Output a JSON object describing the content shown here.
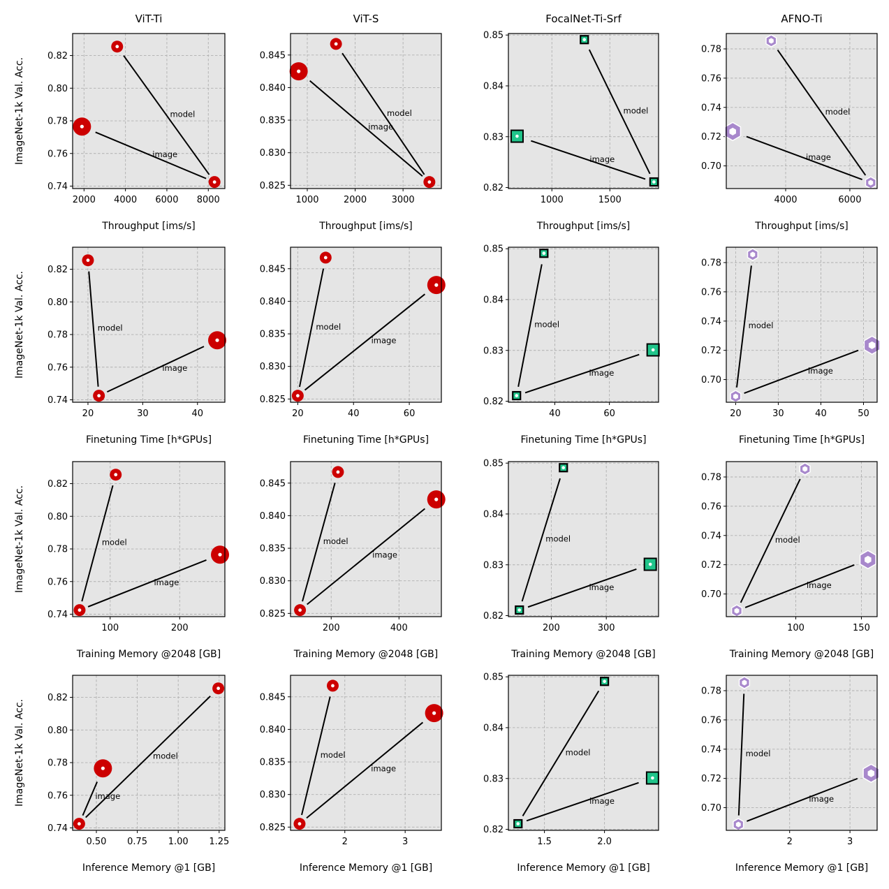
{
  "figure": {
    "y_axis_label": "ImageNet-1k Val. Acc.",
    "colors": {
      "vit": "#cc0000",
      "focalnet_fill": "#20c48a",
      "focalnet_edge": "#000000",
      "afno": "#a888cc",
      "dot": "#ffffff",
      "line": "#000000"
    }
  },
  "chart_data": [
    {
      "type": "scatter",
      "title": "ViT-Ti",
      "xlabel": "Throughput [ims/s]",
      "ylabel": "ImageNet-1k Val. Acc.",
      "xlim": [
        1450,
        8800
      ],
      "ylim": [
        0.7385,
        0.8335
      ],
      "xticks": [
        2000,
        4000,
        6000,
        8000
      ],
      "xtick_labels": [
        "2000",
        "4000",
        "6000",
        "8000"
      ],
      "yticks": [
        0.74,
        0.76,
        0.78,
        0.8,
        0.82
      ],
      "ytick_labels": [
        "0.74",
        "0.76",
        "0.78",
        "0.80",
        "0.82"
      ],
      "marker": "circle",
      "points": {
        "base": {
          "x": 8300,
          "y": 0.7425
        },
        "model": {
          "x": 3600,
          "y": 0.8255
        },
        "image": {
          "x": 1900,
          "y": 0.7765
        }
      },
      "annotations": [
        "model",
        "image"
      ],
      "grid": true
    },
    {
      "type": "scatter",
      "title": "ViT-S",
      "xlabel": "Throughput [ims/s]",
      "ylabel": "",
      "xlim": [
        650,
        3800
      ],
      "ylim": [
        0.8245,
        0.8483
      ],
      "xticks": [
        1000,
        2000,
        3000
      ],
      "xtick_labels": [
        "1000",
        "2000",
        "3000"
      ],
      "yticks": [
        0.825,
        0.83,
        0.835,
        0.84,
        0.845
      ],
      "ytick_labels": [
        "0.825",
        "0.830",
        "0.835",
        "0.840",
        "0.845"
      ],
      "marker": "circle",
      "points": {
        "base": {
          "x": 3550,
          "y": 0.8255
        },
        "model": {
          "x": 1600,
          "y": 0.8467
        },
        "image": {
          "x": 820,
          "y": 0.8425
        }
      },
      "annotations": [
        "model",
        "image"
      ],
      "grid": true
    },
    {
      "type": "scatter",
      "title": "FocalNet-Ti-Srf",
      "xlabel": "Throughput [ims/s]",
      "ylabel": "",
      "xlim": [
        625,
        1920
      ],
      "ylim": [
        0.8198,
        0.8503
      ],
      "xticks": [
        1000,
        1500
      ],
      "xtick_labels": [
        "1000",
        "1500"
      ],
      "yticks": [
        0.82,
        0.83,
        0.84,
        0.85
      ],
      "ytick_labels": [
        "0.82",
        "0.83",
        "0.84",
        "0.85"
      ],
      "marker": "square",
      "points": {
        "base": {
          "x": 1880,
          "y": 0.8211
        },
        "model": {
          "x": 1280,
          "y": 0.8491
        },
        "image": {
          "x": 700,
          "y": 0.8301
        }
      },
      "annotations": [
        "model",
        "image"
      ],
      "grid": true
    },
    {
      "type": "scatter",
      "title": "AFNO-Ti",
      "xlabel": "Throughput [ims/s]",
      "ylabel": "",
      "xlim": [
        2150,
        6850
      ],
      "ylim": [
        0.6845,
        0.7905
      ],
      "xticks": [
        4000,
        6000
      ],
      "xtick_labels": [
        "4000",
        "6000"
      ],
      "yticks": [
        0.7,
        0.72,
        0.74,
        0.76,
        0.78
      ],
      "ytick_labels": [
        "0.70",
        "0.72",
        "0.74",
        "0.76",
        "0.78"
      ],
      "marker": "hexagon",
      "points": {
        "base": {
          "x": 6650,
          "y": 0.6885
        },
        "model": {
          "x": 3550,
          "y": 0.7855
        },
        "image": {
          "x": 2350,
          "y": 0.7235
        }
      },
      "annotations": [
        "model",
        "image"
      ],
      "grid": true
    },
    {
      "type": "scatter",
      "title": "",
      "xlabel": "Finetuning Time [h*GPUs]",
      "ylabel": "ImageNet-1k Val. Acc.",
      "xlim": [
        17.2,
        45
      ],
      "ylim": [
        0.7385,
        0.8335
      ],
      "xticks": [
        20,
        30,
        40
      ],
      "xtick_labels": [
        "20",
        "30",
        "40"
      ],
      "yticks": [
        0.74,
        0.76,
        0.78,
        0.8,
        0.82
      ],
      "ytick_labels": [
        "0.74",
        "0.76",
        "0.78",
        "0.80",
        "0.82"
      ],
      "marker": "circle",
      "points": {
        "base": {
          "x": 22,
          "y": 0.7425
        },
        "model": {
          "x": 20,
          "y": 0.8255
        },
        "image": {
          "x": 43.6,
          "y": 0.7765
        }
      },
      "annotations": [
        "model",
        "image"
      ],
      "grid": true
    },
    {
      "type": "scatter",
      "title": "",
      "xlabel": "Finetuning Time [h*GPUs]",
      "ylabel": "",
      "xlim": [
        17.4,
        71.5
      ],
      "ylim": [
        0.8245,
        0.8483
      ],
      "xticks": [
        20,
        40,
        60
      ],
      "xtick_labels": [
        "20",
        "40",
        "60"
      ],
      "yticks": [
        0.825,
        0.83,
        0.835,
        0.84,
        0.845
      ],
      "ytick_labels": [
        "0.825",
        "0.830",
        "0.835",
        "0.840",
        "0.845"
      ],
      "marker": "circle",
      "points": {
        "base": {
          "x": 20,
          "y": 0.8255
        },
        "model": {
          "x": 30,
          "y": 0.8467
        },
        "image": {
          "x": 69.7,
          "y": 0.8425
        }
      },
      "annotations": [
        "model",
        "image"
      ],
      "grid": true
    },
    {
      "type": "scatter",
      "title": "",
      "xlabel": "Finetuning Time [h*GPUs]",
      "ylabel": "",
      "xlim": [
        23,
        78
      ],
      "ylim": [
        0.8198,
        0.8503
      ],
      "xticks": [
        40,
        60
      ],
      "xtick_labels": [
        "40",
        "60"
      ],
      "yticks": [
        0.82,
        0.83,
        0.84,
        0.85
      ],
      "ytick_labels": [
        "0.82",
        "0.83",
        "0.84",
        "0.85"
      ],
      "marker": "square",
      "points": {
        "base": {
          "x": 26,
          "y": 0.8211
        },
        "model": {
          "x": 36,
          "y": 0.8491
        },
        "image": {
          "x": 76,
          "y": 0.8301
        }
      },
      "annotations": [
        "model",
        "image"
      ],
      "grid": true
    },
    {
      "type": "scatter",
      "title": "",
      "xlabel": "Finetuning Time [h*GPUs]",
      "ylabel": "",
      "xlim": [
        17.8,
        53.2
      ],
      "ylim": [
        0.6845,
        0.7905
      ],
      "xticks": [
        20,
        30,
        40,
        50
      ],
      "xtick_labels": [
        "20",
        "30",
        "40",
        "50"
      ],
      "yticks": [
        0.7,
        0.72,
        0.74,
        0.76,
        0.78
      ],
      "ytick_labels": [
        "0.70",
        "0.72",
        "0.74",
        "0.76",
        "0.78"
      ],
      "marker": "hexagon",
      "points": {
        "base": {
          "x": 20,
          "y": 0.6885
        },
        "model": {
          "x": 24,
          "y": 0.7855
        },
        "image": {
          "x": 52,
          "y": 0.7235
        }
      },
      "annotations": [
        "model",
        "image"
      ],
      "grid": true
    },
    {
      "type": "scatter",
      "title": "",
      "xlabel": "Training Memory @2048 [GB]",
      "ylabel": "ImageNet-1k Val. Acc.",
      "xlim": [
        46,
        265
      ],
      "ylim": [
        0.7385,
        0.8335
      ],
      "xticks": [
        100,
        200
      ],
      "xtick_labels": [
        "100",
        "200"
      ],
      "yticks": [
        0.74,
        0.76,
        0.78,
        0.8,
        0.82
      ],
      "ytick_labels": [
        "0.74",
        "0.76",
        "0.78",
        "0.80",
        "0.82"
      ],
      "marker": "circle",
      "points": {
        "base": {
          "x": 56,
          "y": 0.7425
        },
        "model": {
          "x": 108,
          "y": 0.8255
        },
        "image": {
          "x": 258,
          "y": 0.7765
        }
      },
      "annotations": [
        "model",
        "image"
      ],
      "grid": true
    },
    {
      "type": "scatter",
      "title": "",
      "xlabel": "Training Memory @2048 [GB]",
      "ylabel": "",
      "xlim": [
        80,
        525
      ],
      "ylim": [
        0.8245,
        0.8483
      ],
      "xticks": [
        200,
        400
      ],
      "xtick_labels": [
        "200",
        "400"
      ],
      "yticks": [
        0.825,
        0.83,
        0.835,
        0.84,
        0.845
      ],
      "ytick_labels": [
        "0.825",
        "0.830",
        "0.835",
        "0.840",
        "0.845"
      ],
      "marker": "circle",
      "points": {
        "base": {
          "x": 108,
          "y": 0.8255
        },
        "model": {
          "x": 220,
          "y": 0.8467
        },
        "image": {
          "x": 510,
          "y": 0.8425
        }
      },
      "annotations": [
        "model",
        "image"
      ],
      "grid": true
    },
    {
      "type": "scatter",
      "title": "",
      "xlabel": "Training Memory @2048 [GB]",
      "ylabel": "",
      "xlim": [
        122,
        395
      ],
      "ylim": [
        0.8198,
        0.8503
      ],
      "xticks": [
        200,
        300
      ],
      "xtick_labels": [
        "200",
        "300"
      ],
      "yticks": [
        0.82,
        0.83,
        0.84,
        0.85
      ],
      "ytick_labels": [
        "0.82",
        "0.83",
        "0.84",
        "0.85"
      ],
      "marker": "square",
      "points": {
        "base": {
          "x": 142,
          "y": 0.8211
        },
        "model": {
          "x": 222,
          "y": 0.8491
        },
        "image": {
          "x": 380,
          "y": 0.8301
        }
      },
      "annotations": [
        "model",
        "image"
      ],
      "grid": true
    },
    {
      "type": "scatter",
      "title": "",
      "xlabel": "Training Memory @2048 [GB]",
      "ylabel": "",
      "xlim": [
        47,
        162
      ],
      "ylim": [
        0.6845,
        0.7905
      ],
      "xticks": [
        100,
        150
      ],
      "xtick_labels": [
        "100",
        "150"
      ],
      "yticks": [
        0.7,
        0.72,
        0.74,
        0.76,
        0.78
      ],
      "ytick_labels": [
        "0.70",
        "0.72",
        "0.74",
        "0.76",
        "0.78"
      ],
      "marker": "hexagon",
      "points": {
        "base": {
          "x": 55,
          "y": 0.6885
        },
        "model": {
          "x": 107,
          "y": 0.7855
        },
        "image": {
          "x": 155,
          "y": 0.7235
        }
      },
      "annotations": [
        "model",
        "image"
      ],
      "grid": true
    },
    {
      "type": "scatter",
      "title": "",
      "xlabel": "Inference Memory @1 [GB]",
      "ylabel": "ImageNet-1k Val. Acc.",
      "xlim": [
        0.355,
        1.285
      ],
      "ylim": [
        0.7385,
        0.8335
      ],
      "xticks": [
        0.5,
        0.75,
        1.0,
        1.25
      ],
      "xtick_labels": [
        "0.50",
        "0.75",
        "1.00",
        "1.25"
      ],
      "yticks": [
        0.74,
        0.76,
        0.78,
        0.8,
        0.82
      ],
      "ytick_labels": [
        "0.74",
        "0.76",
        "0.78",
        "0.80",
        "0.82"
      ],
      "marker": "circle",
      "points": {
        "base": {
          "x": 0.395,
          "y": 0.7425
        },
        "model": {
          "x": 1.245,
          "y": 0.8255
        },
        "image": {
          "x": 0.54,
          "y": 0.7765
        }
      },
      "annotations": [
        "model",
        "image"
      ],
      "grid": true
    },
    {
      "type": "scatter",
      "title": "",
      "xlabel": "Inference Memory @1 [GB]",
      "ylabel": "",
      "xlim": [
        1.1,
        3.6
      ],
      "ylim": [
        0.8245,
        0.8483
      ],
      "xticks": [
        2,
        3
      ],
      "xtick_labels": [
        "2",
        "3"
      ],
      "yticks": [
        0.825,
        0.83,
        0.835,
        0.84,
        0.845
      ],
      "ytick_labels": [
        "0.825",
        "0.830",
        "0.835",
        "0.840",
        "0.845"
      ],
      "marker": "circle",
      "points": {
        "base": {
          "x": 1.25,
          "y": 0.8255
        },
        "model": {
          "x": 1.8,
          "y": 0.8467
        },
        "image": {
          "x": 3.48,
          "y": 0.8425
        }
      },
      "annotations": [
        "model",
        "image"
      ],
      "grid": true
    },
    {
      "type": "scatter",
      "title": "",
      "xlabel": "Inference Memory @1 [GB]",
      "ylabel": "",
      "xlim": [
        1.2,
        2.45
      ],
      "ylim": [
        0.8198,
        0.8503
      ],
      "xticks": [
        1.5,
        2.0
      ],
      "xtick_labels": [
        "1.5",
        "2.0"
      ],
      "yticks": [
        0.82,
        0.83,
        0.84,
        0.85
      ],
      "ytick_labels": [
        "0.82",
        "0.83",
        "0.84",
        "0.85"
      ],
      "marker": "square",
      "points": {
        "base": {
          "x": 1.28,
          "y": 0.8211
        },
        "model": {
          "x": 2.0,
          "y": 0.8491
        },
        "image": {
          "x": 2.4,
          "y": 0.8301
        }
      },
      "annotations": [
        "model",
        "image"
      ],
      "grid": true
    },
    {
      "type": "scatter",
      "title": "",
      "xlabel": "Inference Memory @1 [GB]",
      "ylabel": "",
      "xlim": [
        0.95,
        3.45
      ],
      "ylim": [
        0.6845,
        0.7905
      ],
      "xticks": [
        2,
        3
      ],
      "xtick_labels": [
        "2",
        "3"
      ],
      "yticks": [
        0.7,
        0.72,
        0.74,
        0.76,
        0.78
      ],
      "ytick_labels": [
        "0.70",
        "0.72",
        "0.74",
        "0.76",
        "0.78"
      ],
      "marker": "hexagon",
      "points": {
        "base": {
          "x": 1.15,
          "y": 0.6885
        },
        "model": {
          "x": 1.25,
          "y": 0.7855
        },
        "image": {
          "x": 3.35,
          "y": 0.7235
        }
      },
      "annotations": [
        "model",
        "image"
      ],
      "grid": true
    }
  ]
}
